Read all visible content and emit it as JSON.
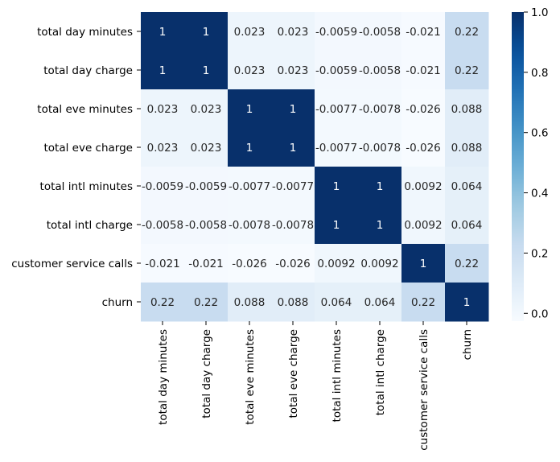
{
  "chart_data": {
    "type": "heatmap",
    "title": "",
    "xlabel": "",
    "ylabel": "",
    "labels": [
      "total day minutes",
      "total day charge",
      "total eve minutes",
      "total eve charge",
      "total intl minutes",
      "total intl charge",
      "customer service calls",
      "churn"
    ],
    "matrix": [
      [
        1,
        1,
        0.023,
        0.023,
        -0.0059,
        -0.0058,
        -0.021,
        0.22
      ],
      [
        1,
        1,
        0.023,
        0.023,
        -0.0059,
        -0.0058,
        -0.021,
        0.22
      ],
      [
        0.023,
        0.023,
        1,
        1,
        -0.0077,
        -0.0078,
        -0.026,
        0.088
      ],
      [
        0.023,
        0.023,
        1,
        1,
        -0.0077,
        -0.0078,
        -0.026,
        0.088
      ],
      [
        -0.0059,
        -0.0059,
        -0.0077,
        -0.0077,
        1,
        1,
        0.0092,
        0.064
      ],
      [
        -0.0058,
        -0.0058,
        -0.0078,
        -0.0078,
        1,
        1,
        0.0092,
        0.064
      ],
      [
        -0.021,
        -0.021,
        -0.026,
        -0.026,
        0.0092,
        0.0092,
        1,
        0.22
      ],
      [
        0.22,
        0.22,
        0.088,
        0.088,
        0.064,
        0.064,
        0.22,
        1
      ]
    ],
    "annotations": [
      [
        "1",
        "1",
        "0.023",
        "0.023",
        "-0.0059",
        "-0.0058",
        "-0.021",
        "0.22"
      ],
      [
        "1",
        "1",
        "0.023",
        "0.023",
        "-0.0059",
        "-0.0058",
        "-0.021",
        "0.22"
      ],
      [
        "0.023",
        "0.023",
        "1",
        "1",
        "-0.0077",
        "-0.0078",
        "-0.026",
        "0.088"
      ],
      [
        "0.023",
        "0.023",
        "1",
        "1",
        "-0.0077",
        "-0.0078",
        "-0.026",
        "0.088"
      ],
      [
        "-0.0059",
        "-0.0059",
        "-0.0077",
        "-0.0077",
        "1",
        "1",
        "0.0092",
        "0.064"
      ],
      [
        "-0.0058",
        "-0.0058",
        "-0.0078",
        "-0.0078",
        "1",
        "1",
        "0.0092",
        "0.064"
      ],
      [
        "-0.021",
        "-0.021",
        "-0.026",
        "-0.026",
        "0.0092",
        "0.0092",
        "1",
        "0.22"
      ],
      [
        "0.22",
        "0.22",
        "0.088",
        "0.088",
        "0.064",
        "0.064",
        "0.22",
        "1"
      ]
    ],
    "colormap": "Blues",
    "vmin": -0.026,
    "vmax": 1,
    "colorbar_ticks": [
      0.0,
      0.2,
      0.4,
      0.6,
      0.8,
      1.0
    ],
    "colorbar_tick_labels": [
      "0.0",
      "0.2",
      "0.4",
      "0.6",
      "0.8",
      "1.0"
    ],
    "legend_placement": "right",
    "grid": false
  }
}
